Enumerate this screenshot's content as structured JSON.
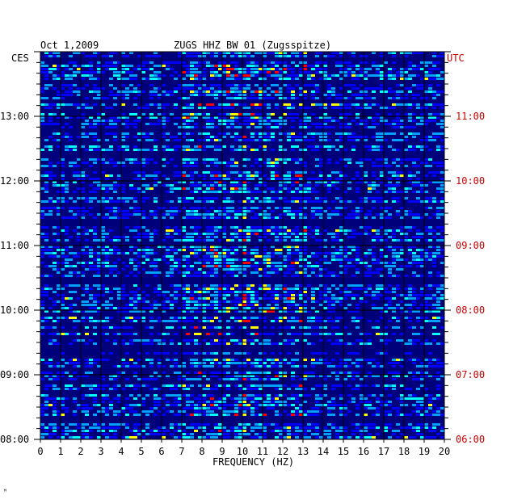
{
  "chart_data": {
    "type": "heatmap",
    "title_left": "Oct 1,2009",
    "title_center": "ZUGS HHZ BW 01 (Zugsspitze)",
    "left_axis_label": "CES",
    "right_axis_label": "UTC",
    "xlabel": "FREQUENCY (HZ)",
    "xlim": [
      0,
      20
    ],
    "x_ticks": [
      "0",
      "1",
      "2",
      "3",
      "4",
      "5",
      "6",
      "7",
      "8",
      "9",
      "10",
      "11",
      "12",
      "13",
      "14",
      "15",
      "16",
      "17",
      "18",
      "19",
      "20"
    ],
    "left_time_range": [
      "08:00",
      "14:00"
    ],
    "left_ticks": [
      "08:00",
      "09:00",
      "10:00",
      "11:00",
      "12:00",
      "13:00"
    ],
    "right_ticks": [
      "06:00",
      "07:00",
      "08:00",
      "09:00",
      "10:00",
      "11:00"
    ],
    "colormap": [
      "#000080",
      "#0000ff",
      "#00a0ff",
      "#00ffff",
      "#ffff00",
      "#ff0000"
    ],
    "background_color": "#00007a",
    "grid": true,
    "right_axis_color": "#cc0000",
    "hot_bands_hz": [
      [
        7,
        10
      ],
      [
        10,
        11.5
      ],
      [
        11.5,
        13
      ]
    ]
  },
  "corner_mark": "ᴹ"
}
